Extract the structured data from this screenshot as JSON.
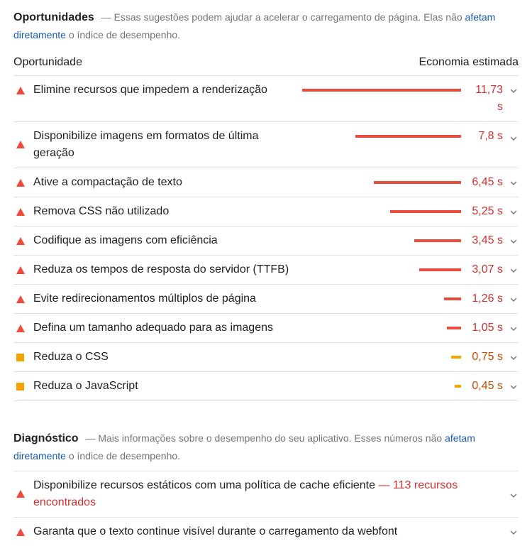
{
  "opportunities": {
    "title": "Oportunidades",
    "desc_prefix": "— Essas sugestões podem ajudar a acelerar o carregamento de página. Elas não",
    "link_text": "afetam diretamente",
    "desc_suffix": "o índice de desempenho.",
    "col_left": "Oportunidade",
    "col_right": "Economia estimada",
    "items": [
      {
        "label_lines": [
          "Elimine recursos que impedem a renderização"
        ],
        "value": "11,73 s",
        "level": "fail",
        "fraction": 1.0
      },
      {
        "label_lines": [
          "Disponibilize imagens em formatos de última",
          "geração"
        ],
        "value": "7,8 s",
        "level": "fail",
        "fraction": 0.665
      },
      {
        "label_lines": [
          "Ative a compactação de texto"
        ],
        "value": "6,45 s",
        "level": "fail",
        "fraction": 0.55
      },
      {
        "label_lines": [
          "Remova CSS não utilizado"
        ],
        "value": "5,25 s",
        "level": "fail",
        "fraction": 0.448
      },
      {
        "label_lines": [
          "Codifique as imagens com eficiência"
        ],
        "value": "3,45 s",
        "level": "fail",
        "fraction": 0.294
      },
      {
        "label_lines": [
          "Reduza os tempos de resposta do servidor (TTFB)"
        ],
        "value": "3,07 s",
        "level": "fail",
        "fraction": 0.262
      },
      {
        "label_lines": [
          "Evite redirecionamentos múltiplos de página"
        ],
        "value": "1,26 s",
        "level": "fail",
        "fraction": 0.107
      },
      {
        "label_lines": [
          "Defina um tamanho adequado para as imagens"
        ],
        "value": "1,05 s",
        "level": "fail",
        "fraction": 0.09
      },
      {
        "label_lines": [
          "Reduza o CSS"
        ],
        "value": "0,75 s",
        "level": "average",
        "fraction": 0.064
      },
      {
        "label_lines": [
          "Reduza o JavaScript"
        ],
        "value": "0,45 s",
        "level": "average",
        "fraction": 0.038
      }
    ]
  },
  "diagnostics": {
    "title": "Diagnóstico",
    "desc_prefix": "— Mais informações sobre o desempenho do seu aplicativo. Esses números não",
    "link_text": "afetam diretamente",
    "desc_suffix": "o índice de desempenho.",
    "items": [
      {
        "label": "Disponibilize recursos estáticos com uma política de cache eficiente",
        "count": "— 113 recursos encontrados",
        "level": "fail"
      },
      {
        "label": "Garanta que o texto continue visível durante o carregamento da webfont",
        "count": "",
        "level": "fail"
      }
    ]
  },
  "colors": {
    "fail": "#f04a3c",
    "average": "#f4a400",
    "link": "#1a5bb4"
  },
  "icons": {
    "fail": "triangle-warning-icon",
    "average": "square-average-icon",
    "expand": "chevron-down-icon"
  }
}
